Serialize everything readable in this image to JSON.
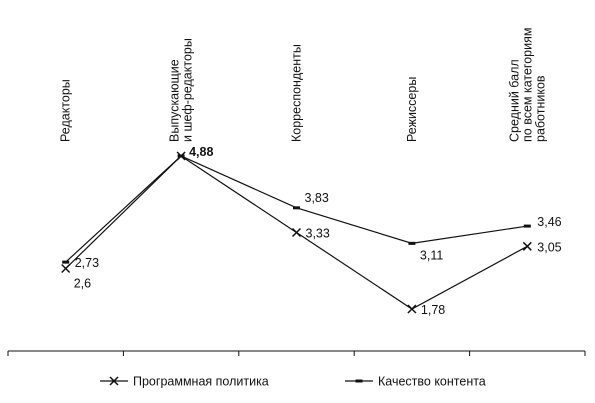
{
  "chart_data": {
    "type": "line",
    "categories": [
      [
        "Редакторы"
      ],
      [
        "Выпускающие",
        "и шеф-редакторы"
      ],
      [
        "Корреспонденты"
      ],
      [
        "Режиссеры"
      ],
      [
        "Средний балл",
        "по всем категориям",
        "работников"
      ]
    ],
    "series": [
      {
        "name": "Программная политика",
        "marker": "x",
        "values": [
          2.6,
          4.88,
          3.33,
          1.78,
          3.05
        ],
        "labels": [
          "2,6",
          "4,88",
          "3,33",
          "1,78",
          "3,05"
        ]
      },
      {
        "name": "Качество контента",
        "marker": "dash",
        "values": [
          2.73,
          4.88,
          3.83,
          3.11,
          3.46
        ],
        "labels": [
          "2,73",
          "",
          "3,83",
          "3,11",
          "3,46"
        ]
      }
    ],
    "ylim": [
      0,
      6
    ],
    "grid": false,
    "legend_position": "bottom",
    "colors": {
      "line": "#111111",
      "background": "#ffffff"
    }
  }
}
